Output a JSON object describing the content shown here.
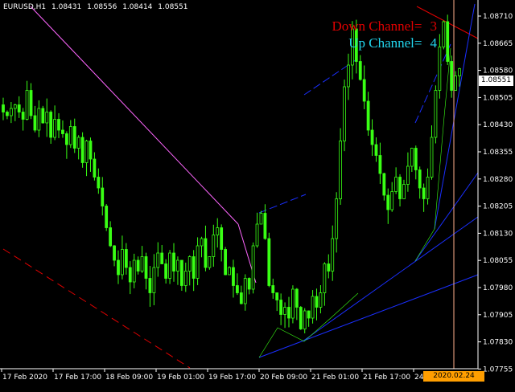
{
  "header": {
    "symbol": "EURUSD,H1",
    "open": "1.08431",
    "high": "1.08556",
    "low": "1.08414",
    "close": "1.08551"
  },
  "overlay": {
    "down_channel_label": "Down Channel=",
    "down_channel_value": "3",
    "down_channel_color": "#e00000",
    "up_channel_label": "Up Channel=",
    "up_channel_value": "4",
    "up_channel_color": "#22d6ee"
  },
  "price_axis": [
    "1.08710",
    "1.08665",
    "1.08580",
    "1.08505",
    "1.08430",
    "1.08355",
    "1.08280",
    "1.08205",
    "1.08130",
    "1.08055",
    "1.07980",
    "1.07905",
    "1.07830",
    "1.07755"
  ],
  "current_price": "1.08551",
  "time_axis": [
    "17 Feb 2020",
    "17 Feb 17:00",
    "18 Feb 09:00",
    "19 Feb 01:00",
    "19 Feb 17:00",
    "20 Feb 09:00",
    "21 Feb 01:00",
    "21 Feb 17:00",
    "24"
  ],
  "crosshair_time": "2020.02.24 21:00",
  "colors": {
    "candle": "#39ff14",
    "down_trendline": "#ff66ff",
    "down_channel_lines": "#e00000",
    "up_channel_lines": "#1a2fff",
    "crosshair": "#ffb08c",
    "axis": "#ffffff"
  },
  "chart_data": {
    "type": "candlestick",
    "symbol": "EURUSD",
    "timeframe": "H1",
    "ylim": [
      1.0772,
      1.0874
    ],
    "x": [
      "17 Feb 2020",
      "17 Feb 17:00",
      "18 Feb 09:00",
      "19 Feb 01:00",
      "19 Feb 17:00",
      "20 Feb 09:00",
      "21 Feb 01:00",
      "21 Feb 17:00",
      "24"
    ],
    "close_series": [
      1.0843,
      1.0842,
      1.0844,
      1.0845,
      1.0843,
      1.0841,
      1.0849,
      1.0842,
      1.0838,
      1.0844,
      1.084,
      1.0843,
      1.0836,
      1.0841,
      1.0838,
      1.0837,
      1.0834,
      1.0839,
      1.0833,
      1.0836,
      1.0829,
      1.0835,
      1.083,
      1.0825,
      1.0822,
      1.0817,
      1.0811,
      1.0806,
      1.0802,
      1.0798,
      1.0805,
      1.08,
      1.0796,
      1.0802,
      1.0799,
      1.0803,
      1.0797,
      1.0793,
      1.08,
      1.0804,
      1.0801,
      1.0797,
      1.0804,
      1.0799,
      1.0802,
      1.0795,
      1.0799,
      1.0803,
      1.0797,
      1.0806,
      1.0808,
      1.08,
      1.0803,
      1.0809,
      1.0811,
      1.0805,
      1.0798,
      1.08,
      1.0795,
      1.0793,
      1.079,
      1.0797,
      1.0794,
      1.0806,
      1.0812,
      1.0815,
      1.0808,
      1.0795,
      1.0793,
      1.0791,
      1.0787,
      1.0789,
      1.0786,
      1.0794,
      1.0789,
      1.0783,
      1.0788,
      1.0786,
      1.0792,
      1.0789,
      1.0793,
      1.0801,
      1.0799,
      1.0808,
      1.0819,
      1.0835,
      1.085,
      1.0856,
      1.0866,
      1.0857,
      1.0852,
      1.0846,
      1.0838,
      1.0834,
      1.0831,
      1.0826,
      1.082,
      1.0816,
      1.0821,
      1.0825,
      1.0819,
      1.0823,
      1.0828,
      1.0833,
      1.0827,
      1.0822,
      1.0819,
      1.0825,
      1.0836,
      1.0849,
      1.0861,
      1.0868,
      1.0857,
      1.0849,
      1.0853,
      1.0855
    ]
  }
}
